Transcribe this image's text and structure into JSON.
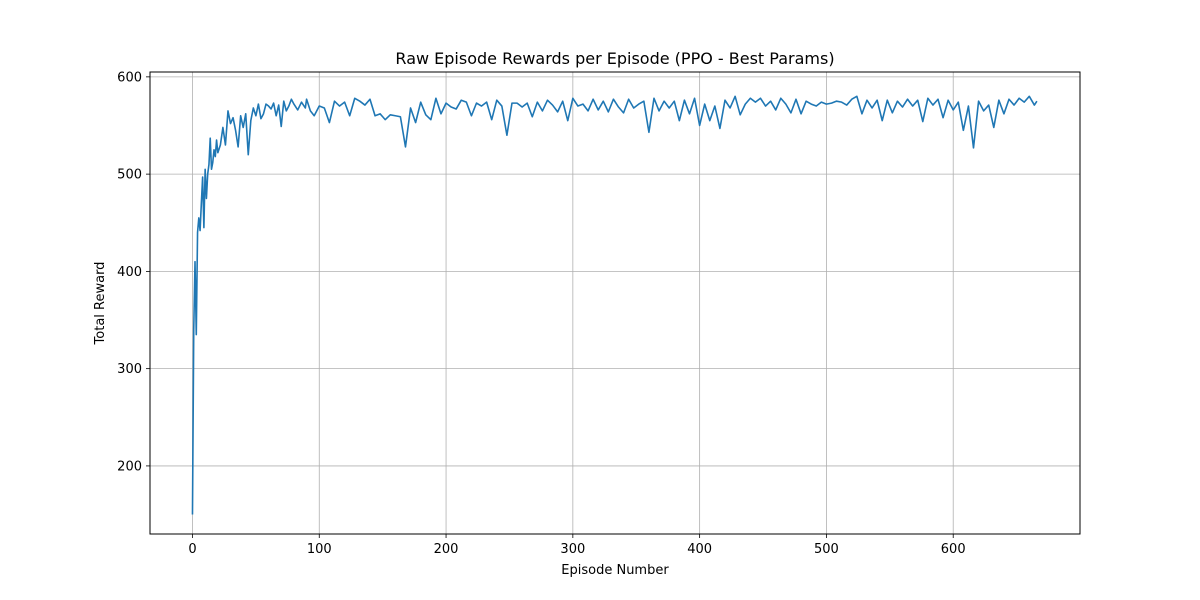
{
  "chart_data": {
    "type": "line",
    "title": "Raw Episode Rewards per Episode (PPO - Best Params)",
    "xlabel": "Episode Number",
    "ylabel": "Total Reward",
    "xlim": [
      -33.5,
      700
    ],
    "ylim": [
      130,
      605
    ],
    "xticks": [
      0,
      100,
      200,
      300,
      400,
      500,
      600
    ],
    "yticks": [
      200,
      300,
      400,
      500,
      600
    ],
    "grid": true,
    "line_color": "#1f77b4",
    "series": [
      {
        "x": [
          0,
          1,
          2,
          3,
          4,
          5,
          6,
          7,
          8,
          9,
          10,
          11,
          12,
          13,
          14,
          15,
          16,
          17,
          18,
          19,
          20,
          22,
          24,
          26,
          28,
          30,
          32,
          34,
          36,
          38,
          40,
          42,
          44,
          46,
          48,
          50,
          52,
          54,
          56,
          58,
          60,
          62,
          64,
          66,
          68,
          70,
          72,
          74,
          76,
          78,
          80,
          83,
          86,
          89,
          90,
          93,
          96,
          100,
          104,
          108,
          112,
          116,
          120,
          124,
          128,
          132,
          136,
          140,
          144,
          148,
          152,
          156,
          160,
          164,
          168,
          172,
          176,
          180,
          184,
          188,
          192,
          196,
          200,
          204,
          208,
          212,
          216,
          220,
          224,
          228,
          232,
          236,
          240,
          244,
          248,
          252,
          256,
          260,
          264,
          268,
          272,
          276,
          280,
          284,
          288,
          292,
          296,
          300,
          304,
          308,
          312,
          316,
          320,
          324,
          328,
          332,
          336,
          340,
          344,
          348,
          352,
          356,
          360,
          364,
          368,
          372,
          376,
          380,
          384,
          388,
          392,
          396,
          400,
          404,
          408,
          412,
          416,
          420,
          424,
          428,
          432,
          436,
          440,
          444,
          448,
          452,
          456,
          460,
          464,
          468,
          472,
          476,
          480,
          484,
          488,
          492,
          496,
          500,
          504,
          508,
          512,
          516,
          520,
          524,
          528,
          532,
          536,
          540,
          544,
          548,
          552,
          556,
          560,
          564,
          568,
          572,
          576,
          580,
          584,
          588,
          592,
          596,
          600,
          604,
          608,
          612,
          616,
          620,
          624,
          628,
          632,
          636,
          640,
          644,
          648,
          652,
          656,
          660,
          664,
          666
        ],
        "y": [
          150,
          340,
          410,
          335,
          440,
          455,
          442,
          470,
          497,
          445,
          505,
          475,
          500,
          510,
          537,
          505,
          512,
          525,
          518,
          535,
          522,
          530,
          548,
          530,
          565,
          552,
          558,
          545,
          528,
          560,
          548,
          562,
          520,
          555,
          568,
          560,
          572,
          557,
          562,
          572,
          570,
          567,
          573,
          560,
          571,
          549,
          575,
          565,
          570,
          577,
          572,
          566,
          574,
          568,
          577,
          565,
          560,
          570,
          568,
          553,
          575,
          570,
          574,
          560,
          578,
          575,
          571,
          577,
          560,
          562,
          556,
          561,
          560,
          559,
          528,
          568,
          553,
          574,
          561,
          556,
          578,
          562,
          573,
          569,
          567,
          576,
          574,
          560,
          573,
          570,
          574,
          556,
          576,
          570,
          540,
          573,
          573,
          569,
          573,
          559,
          574,
          565,
          576,
          571,
          564,
          575,
          555,
          578,
          570,
          572,
          565,
          577,
          566,
          575,
          564,
          577,
          569,
          563,
          577,
          568,
          572,
          575,
          543,
          578,
          565,
          575,
          568,
          575,
          555,
          576,
          562,
          578,
          550,
          572,
          555,
          570,
          547,
          576,
          568,
          580,
          561,
          572,
          578,
          574,
          578,
          570,
          575,
          566,
          578,
          572,
          563,
          577,
          562,
          575,
          572,
          570,
          574,
          572,
          573,
          575,
          574,
          571,
          577,
          580,
          562,
          576,
          568,
          576,
          555,
          576,
          563,
          575,
          569,
          577,
          570,
          576,
          554,
          578,
          571,
          577,
          558,
          576,
          566,
          574,
          545,
          570,
          527,
          575,
          565,
          571,
          548,
          576,
          562,
          577,
          571,
          578,
          574,
          580,
          571,
          575
        ]
      }
    ]
  }
}
